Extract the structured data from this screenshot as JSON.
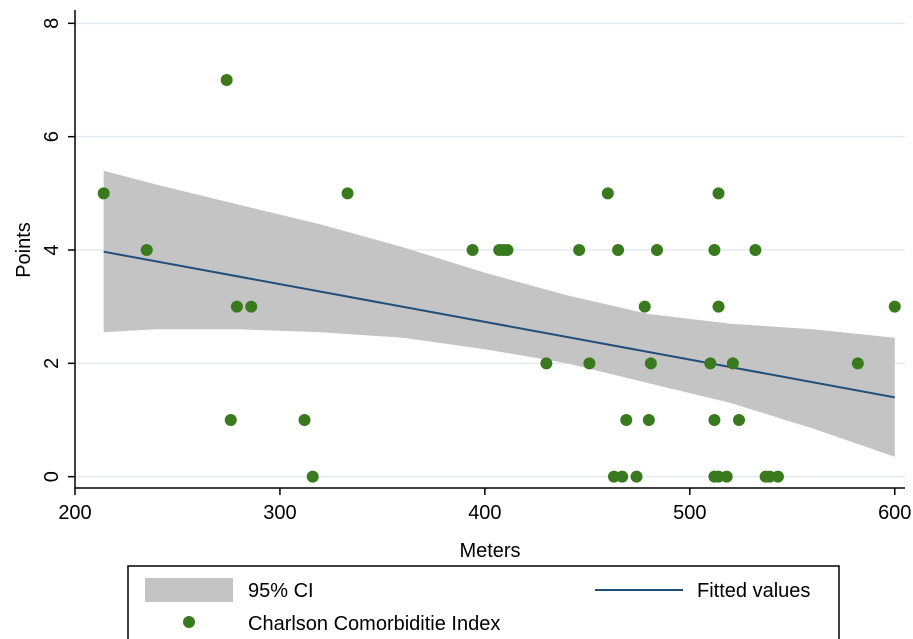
{
  "chart_data": {
    "type": "scatter",
    "title": "",
    "xlabel": "Meters",
    "ylabel": "Points",
    "xlim": [
      200,
      605
    ],
    "ylim": [
      -0.2,
      8.2
    ],
    "xticks": [
      200,
      300,
      400,
      500,
      600
    ],
    "xtick_labels": [
      "200",
      "300",
      "400",
      "500",
      "600"
    ],
    "yticks": [
      0,
      2,
      4,
      6,
      8
    ],
    "ytick_labels": [
      "0",
      "2",
      "4",
      "6",
      "8"
    ],
    "grid": "horizontal",
    "legend_placement": "bottom",
    "legend": {
      "ci_label": "95% CI",
      "fit_label": "Fitted values",
      "points_label": "Charlson Comorbiditie Index"
    },
    "colors": {
      "points": "#3a7a1e",
      "fit_line": "#1f4f7a",
      "ci_band": "#c4c4c4",
      "grid": "#e4ecf0"
    },
    "series": [
      {
        "name": "Charlson Comorbiditie Index",
        "type": "scatter",
        "x": [
          214,
          235,
          274,
          276,
          279,
          286,
          312,
          316,
          333,
          394,
          407,
          409,
          411,
          430,
          446,
          451,
          460,
          463,
          465,
          467,
          469,
          474,
          478,
          480,
          481,
          484,
          510,
          512,
          512,
          512,
          514,
          514,
          514,
          518,
          521,
          524,
          532,
          537,
          539,
          543,
          582,
          600
        ],
        "y": [
          5,
          4,
          7,
          1,
          3,
          3,
          1,
          0,
          5,
          4,
          4,
          4,
          4,
          2,
          4,
          2,
          5,
          0,
          4,
          0,
          1,
          0,
          3,
          1,
          2,
          4,
          2,
          1,
          4,
          0,
          5,
          3,
          0,
          0,
          2,
          1,
          4,
          0,
          0,
          0,
          2,
          3
        ]
      },
      {
        "name": "Fitted values",
        "type": "line",
        "x": [
          214,
          600
        ],
        "y": [
          3.97,
          1.4
        ]
      },
      {
        "name": "95% CI",
        "type": "area",
        "x": [
          214,
          240,
          280,
          320,
          360,
          400,
          440,
          480,
          520,
          560,
          600
        ],
        "upper": [
          5.4,
          5.15,
          4.8,
          4.45,
          4.05,
          3.6,
          3.2,
          2.87,
          2.7,
          2.6,
          2.45
        ],
        "lower": [
          2.55,
          2.6,
          2.6,
          2.55,
          2.45,
          2.25,
          2.0,
          1.65,
          1.3,
          0.85,
          0.35
        ]
      }
    ]
  }
}
